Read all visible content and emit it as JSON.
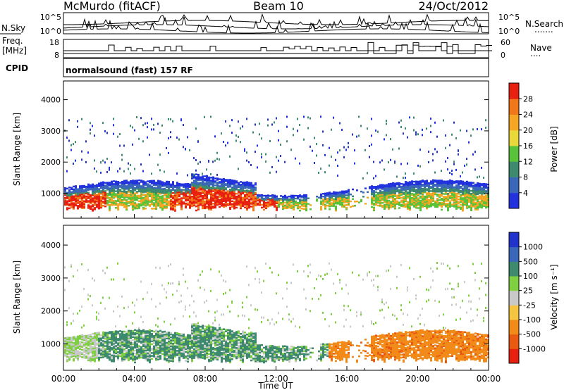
{
  "header": {
    "station": "McMurdo (fitACF)",
    "beam": "Beam 10",
    "date": "24/Oct/2012"
  },
  "noise_panel": {
    "left_label": "N.Sky",
    "right_label": "N.Search",
    "ticks_left": [
      "10^5",
      "10^0"
    ],
    "ticks_right": [
      "10^5",
      "10^0"
    ],
    "right_dots": "......."
  },
  "freq_panel": {
    "left_label_1": "Freq.",
    "left_label_2": "[MHz]",
    "ticks_left": [
      "18",
      "8"
    ],
    "ticks_right": [
      "60",
      "0"
    ],
    "right_label": "Nave",
    "right_dots": "...."
  },
  "cpid_panel": {
    "label": "CPID",
    "text": "normalsound (fast) 157 RF"
  },
  "colors": {
    "power_scale": [
      "#2233dd",
      "#3a67b8",
      "#3d8a6e",
      "#58c23a",
      "#e8d83a",
      "#f5a623",
      "#f07818",
      "#e82010"
    ],
    "velocity_scale": [
      "#2233cc",
      "#3a67b8",
      "#3d8a6e",
      "#7fd040",
      "#c8c8c8",
      "#f5c542",
      "#f28a1a",
      "#e85a10",
      "#e82010"
    ]
  },
  "chart_data": [
    {
      "type": "heatmap",
      "ylabel": "Slant Range [km]",
      "xlabel": "",
      "x_ticks": [
        "00:00",
        "04:00",
        "08:00",
        "12:00",
        "16:00",
        "20:00",
        "00:00"
      ],
      "y_ticks": [
        "1000",
        "2000",
        "3000",
        "4000"
      ],
      "ylim": [
        200,
        4600
      ],
      "colorbar_label": "Power [dB]",
      "colorbar_ticks": [
        "4",
        "8",
        "12",
        "16",
        "20",
        "24",
        "28"
      ],
      "colorbar_range": [
        0,
        30
      ]
    },
    {
      "type": "heatmap",
      "ylabel": "Slant Range [km]",
      "xlabel": "Time UT",
      "x_ticks": [
        "00:00",
        "04:00",
        "08:00",
        "12:00",
        "16:00",
        "20:00",
        "00:00"
      ],
      "y_ticks": [
        "1000",
        "2000",
        "3000",
        "4000"
      ],
      "ylim": [
        200,
        4600
      ],
      "colorbar_label": "Velocity [m s⁻¹]",
      "colorbar_ticks": [
        "1000",
        "500",
        "100",
        "25",
        "-25",
        "-100",
        "-500",
        "-1000"
      ]
    }
  ]
}
